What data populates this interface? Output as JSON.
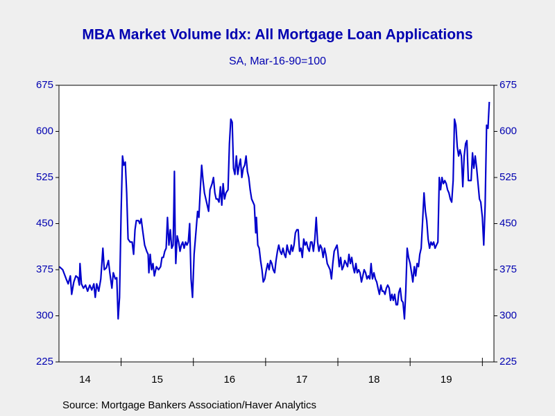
{
  "chart_data": {
    "type": "line",
    "title": "MBA Market Volume Idx: All Mortgage Loan Applications",
    "subtitle": "SA, Mar-16-90=100",
    "source": "Source:  Mortgage Bankers Association/Haver Analytics",
    "x": [
      2014.144,
      2014.192,
      2014.24,
      2014.268,
      2014.297,
      2014.316,
      2014.345,
      2014.374,
      2014.403,
      2014.422,
      2014.431,
      2014.451,
      2014.479,
      2014.508,
      2014.537,
      2014.566,
      2014.594,
      2014.623,
      2014.642,
      2014.662,
      2014.69,
      2014.719,
      2014.748,
      2014.767,
      2014.796,
      2014.825,
      2014.844,
      2014.873,
      2014.892,
      2014.92,
      2014.94,
      2014.959,
      2014.978,
      2015.0,
      2015.019,
      2015.038,
      2015.058,
      2015.077,
      2015.096,
      2015.125,
      2015.153,
      2015.173,
      2015.192,
      2015.211,
      2015.24,
      2015.259,
      2015.278,
      2015.297,
      2015.326,
      2015.355,
      2015.374,
      2015.384,
      2015.403,
      2015.422,
      2015.441,
      2015.46,
      2015.489,
      2015.518,
      2015.547,
      2015.566,
      2015.585,
      2015.604,
      2015.623,
      2015.642,
      2015.662,
      2015.681,
      2015.7,
      2015.719,
      2015.729,
      2015.738,
      2015.748,
      2015.757,
      2015.776,
      2015.796,
      2015.815,
      2015.834,
      2015.853,
      2015.872,
      2015.892,
      2015.911,
      2015.93,
      2015.949,
      2015.968,
      2015.988,
      2016.01,
      2016.038,
      2016.058,
      2016.077,
      2016.096,
      2016.115,
      2016.134,
      2016.153,
      2016.173,
      2016.192,
      2016.211,
      2016.23,
      2016.259,
      2016.278,
      2016.297,
      2016.316,
      2016.336,
      2016.355,
      2016.374,
      2016.393,
      2016.412,
      2016.432,
      2016.451,
      2016.48,
      2016.499,
      2016.518,
      2016.537,
      2016.556,
      2016.575,
      2016.595,
      2016.614,
      2016.633,
      2016.652,
      2016.671,
      2016.69,
      2016.71,
      2016.729,
      2016.748,
      2016.767,
      2016.786,
      2016.806,
      2016.825,
      2016.844,
      2016.863,
      2016.873,
      2016.892,
      2016.911,
      2016.93,
      2016.949,
      2016.968,
      2016.988,
      2017.01,
      2017.029,
      2017.048,
      2017.067,
      2017.086,
      2017.105,
      2017.125,
      2017.144,
      2017.163,
      2017.182,
      2017.201,
      2017.221,
      2017.24,
      2017.259,
      2017.278,
      2017.297,
      2017.316,
      2017.336,
      2017.355,
      2017.374,
      2017.393,
      2017.412,
      2017.432,
      2017.451,
      2017.47,
      2017.489,
      2017.508,
      2017.527,
      2017.547,
      2017.566,
      2017.585,
      2017.604,
      2017.623,
      2017.642,
      2017.662,
      2017.681,
      2017.7,
      2017.719,
      2017.738,
      2017.757,
      2017.777,
      2017.796,
      2017.815,
      2017.834,
      2017.853,
      2017.873,
      2017.892,
      2017.911,
      2017.93,
      2017.949,
      2017.968,
      2017.988,
      2018.0,
      2018.019,
      2018.038,
      2018.058,
      2018.077,
      2018.096,
      2018.115,
      2018.134,
      2018.153,
      2018.173,
      2018.192,
      2018.211,
      2018.23,
      2018.249,
      2018.269,
      2018.288,
      2018.307,
      2018.326,
      2018.345,
      2018.364,
      2018.384,
      2018.403,
      2018.422,
      2018.441,
      2018.46,
      2018.479,
      2018.499,
      2018.518,
      2018.537,
      2018.556,
      2018.575,
      2018.595,
      2018.614,
      2018.633,
      2018.652,
      2018.671,
      2018.69,
      2018.71,
      2018.729,
      2018.748,
      2018.767,
      2018.786,
      2018.806,
      2018.825,
      2018.844,
      2018.863,
      2018.882,
      2018.901,
      2018.921,
      2018.94,
      2018.959,
      2018.978,
      2019.0,
      2019.019,
      2019.038,
      2019.058,
      2019.077,
      2019.096,
      2019.115,
      2019.134,
      2019.153,
      2019.173,
      2019.192,
      2019.211,
      2019.23,
      2019.249,
      2019.269,
      2019.288,
      2019.307,
      2019.326,
      2019.345,
      2019.364,
      2019.384,
      2019.403,
      2019.422,
      2019.441,
      2019.46,
      2019.479,
      2019.499,
      2019.518,
      2019.537,
      2019.556,
      2019.575,
      2019.595,
      2019.614,
      2019.633,
      2019.652,
      2019.671,
      2019.69,
      2019.71,
      2019.729,
      2019.748,
      2019.767,
      2019.786,
      2019.806,
      2019.825,
      2019.844,
      2019.863,
      2019.882,
      2019.901,
      2019.921,
      2019.94,
      2019.959,
      2019.978,
      2020.0,
      2020.019,
      2020.038,
      2020.058,
      2020.077,
      2020.096
    ],
    "series": [
      {
        "color": "#0000cc",
        "values": [
          380,
          375,
          360,
          352,
          365,
          335,
          355,
          365,
          362,
          350,
          385,
          352,
          345,
          350,
          340,
          350,
          342,
          352,
          330,
          352,
          340,
          360,
          410,
          375,
          378,
          390,
          370,
          345,
          370,
          360,
          362,
          295,
          330,
          470,
          560,
          545,
          550,
          500,
          425,
          420,
          420,
          400,
          440,
          455,
          455,
          450,
          458,
          440,
          415,
          405,
          400,
          370,
          400,
          375,
          385,
          365,
          380,
          375,
          380,
          395,
          395,
          405,
          410,
          460,
          415,
          440,
          410,
          415,
          470,
          535,
          430,
          385,
          430,
          420,
          405,
          415,
          420,
          410,
          420,
          415,
          420,
          450,
          360,
          330,
          400,
          440,
          470,
          460,
          505,
          545,
          520,
          500,
          490,
          480,
          470,
          505,
          515,
          525,
          500,
          490,
          490,
          485,
          510,
          480,
          515,
          490,
          500,
          505,
          580,
          620,
          615,
          540,
          530,
          560,
          530,
          545,
          555,
          525,
          540,
          545,
          560,
          535,
          525,
          505,
          490,
          485,
          480,
          435,
          460,
          415,
          410,
          390,
          375,
          355,
          360,
          375,
          385,
          375,
          390,
          385,
          375,
          370,
          390,
          405,
          415,
          405,
          400,
          410,
          400,
          395,
          415,
          405,
          400,
          415,
          405,
          415,
          435,
          440,
          440,
          405,
          410,
          395,
          425,
          415,
          420,
          410,
          405,
          420,
          420,
          405,
          425,
          460,
          420,
          405,
          415,
          410,
          395,
          410,
          400,
          385,
          380,
          375,
          360,
          385,
          405,
          410,
          415,
          405,
          380,
          395,
          375,
          380,
          390,
          385,
          380,
          400,
          385,
          395,
          380,
          370,
          385,
          370,
          375,
          370,
          355,
          365,
          375,
          370,
          360,
          365,
          360,
          385,
          360,
          370,
          360,
          355,
          345,
          335,
          350,
          340,
          340,
          335,
          345,
          350,
          345,
          325,
          335,
          325,
          335,
          318,
          318,
          338,
          345,
          325,
          322,
          295,
          340,
          410,
          395,
          385,
          370,
          355,
          380,
          365,
          385,
          380,
          400,
          410,
          455,
          500,
          470,
          455,
          425,
          410,
          420,
          415,
          420,
          410,
          415,
          420,
          525,
          505,
          525,
          515,
          520,
          515,
          505,
          500,
          490,
          485,
          520,
          620,
          610,
          575,
          560,
          570,
          560,
          510,
          560,
          580,
          585,
          520,
          520,
          520,
          565,
          540,
          560,
          540,
          515,
          490,
          485,
          460,
          415,
          480,
          610,
          605,
          648
        ]
      }
    ],
    "xlim": [
      2014.14,
      2020.16
    ],
    "xticks": [
      {
        "value": 2014.5,
        "label": "14"
      },
      {
        "value": 2015.5,
        "label": "15"
      },
      {
        "value": 2016.5,
        "label": "16"
      },
      {
        "value": 2017.5,
        "label": "17"
      },
      {
        "value": 2018.5,
        "label": "18"
      },
      {
        "value": 2019.5,
        "label": "19"
      }
    ],
    "ylim": [
      225,
      675
    ],
    "yticks": [
      225,
      300,
      375,
      450,
      525,
      600,
      675
    ],
    "y2lim": [
      225,
      675
    ],
    "y2ticks": [
      225,
      300,
      375,
      450,
      525,
      600,
      675
    ]
  }
}
